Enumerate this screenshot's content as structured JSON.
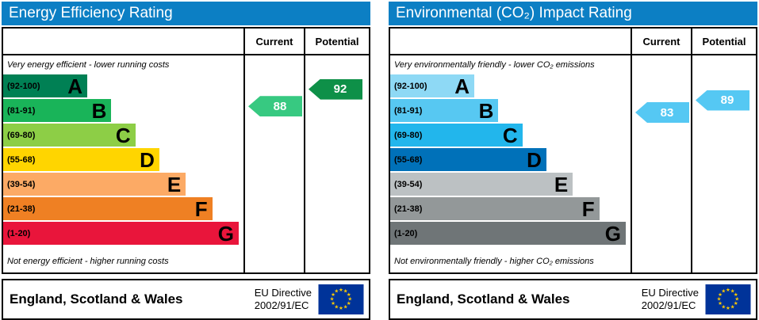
{
  "charts": [
    {
      "title": "Energy Efficiency Rating",
      "title_bg": "#0c7fc4",
      "columns": {
        "current_label": "Current",
        "potential_label": "Potential"
      },
      "top_note": "Very energy efficient - lower running costs",
      "bottom_note": "Not energy efficient - higher running costs",
      "bands": [
        {
          "range": "(92-100)",
          "letter": "A",
          "color": "#008054",
          "width_pct": 35
        },
        {
          "range": "(81-91)",
          "letter": "B",
          "color": "#19b459",
          "width_pct": 45
        },
        {
          "range": "(69-80)",
          "letter": "C",
          "color": "#8dce46",
          "width_pct": 55
        },
        {
          "range": "(55-68)",
          "letter": "D",
          "color": "#ffd500",
          "width_pct": 65
        },
        {
          "range": "(39-54)",
          "letter": "E",
          "color": "#fcaa65",
          "width_pct": 76
        },
        {
          "range": "(21-38)",
          "letter": "F",
          "color": "#ef8023",
          "width_pct": 87
        },
        {
          "range": "(1-20)",
          "letter": "G",
          "color": "#e9153b",
          "width_pct": 98
        }
      ],
      "arrows": {
        "current": {
          "value": "88",
          "band": "B",
          "frac": 0.3,
          "color": "#37c981"
        },
        "potential": {
          "value": "92",
          "band": "A",
          "frac": 0.6,
          "color": "#0e9048"
        }
      },
      "footer": {
        "region": "England, Scotland & Wales",
        "directive_line1": "EU Directive",
        "directive_line2": "2002/91/EC"
      }
    },
    {
      "title": "Environmental (CO₂) Impact Rating",
      "title_bg": "#0c7fc4",
      "columns": {
        "current_label": "Current",
        "potential_label": "Potential"
      },
      "top_note": "Very environmentally friendly - lower CO₂ emissions",
      "bottom_note": "Not environmentally friendly - higher CO₂ emissions",
      "bands": [
        {
          "range": "(92-100)",
          "letter": "A",
          "color": "#8ed9f5",
          "width_pct": 35
        },
        {
          "range": "(81-91)",
          "letter": "B",
          "color": "#57c8f2",
          "width_pct": 45
        },
        {
          "range": "(69-80)",
          "letter": "C",
          "color": "#22b6ec",
          "width_pct": 55
        },
        {
          "range": "(55-68)",
          "letter": "D",
          "color": "#0071b9",
          "width_pct": 65
        },
        {
          "range": "(39-54)",
          "letter": "E",
          "color": "#bcc1c3",
          "width_pct": 76
        },
        {
          "range": "(21-38)",
          "letter": "F",
          "color": "#939899",
          "width_pct": 87
        },
        {
          "range": "(1-20)",
          "letter": "G",
          "color": "#6f7577",
          "width_pct": 98
        }
      ],
      "arrows": {
        "current": {
          "value": "83",
          "band": "B",
          "frac": 0.55,
          "color": "#55c8f3"
        },
        "potential": {
          "value": "89",
          "band": "B",
          "frac": 0.05,
          "color": "#55c8f3"
        }
      },
      "footer": {
        "region": "England, Scotland & Wales",
        "directive_line1": "EU Directive",
        "directive_line2": "2002/91/EC"
      }
    }
  ],
  "flag": {
    "bg": "#003399",
    "star_color": "#ffcc00"
  },
  "chart_data": [
    {
      "type": "bar",
      "title": "Energy Efficiency Rating",
      "categories": [
        "A (92-100)",
        "B (81-91)",
        "C (69-80)",
        "D (55-68)",
        "E (39-54)",
        "F (21-38)",
        "G (1-20)"
      ],
      "series": [
        {
          "name": "Current",
          "value": 88,
          "band": "B"
        },
        {
          "name": "Potential",
          "value": 92,
          "band": "A"
        }
      ],
      "scale": [
        1,
        100
      ],
      "top_label": "Very energy efficient - lower running costs",
      "bottom_label": "Not energy efficient - higher running costs",
      "footer": "England, Scotland & Wales — EU Directive 2002/91/EC"
    },
    {
      "type": "bar",
      "title": "Environmental (CO₂) Impact Rating",
      "categories": [
        "A (92-100)",
        "B (81-91)",
        "C (69-80)",
        "D (55-68)",
        "E (39-54)",
        "F (21-38)",
        "G (1-20)"
      ],
      "series": [
        {
          "name": "Current",
          "value": 83,
          "band": "B"
        },
        {
          "name": "Potential",
          "value": 89,
          "band": "B"
        }
      ],
      "scale": [
        1,
        100
      ],
      "top_label": "Very environmentally friendly - lower CO₂ emissions",
      "bottom_label": "Not environmentally friendly - higher CO₂ emissions",
      "footer": "England, Scotland & Wales — EU Directive 2002/91/EC"
    }
  ]
}
